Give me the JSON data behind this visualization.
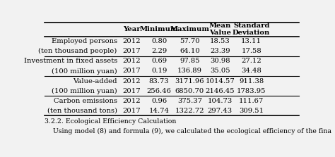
{
  "headers": [
    "",
    "Year",
    "Minimum",
    "Maximum",
    "Mean\nValue",
    "Standard\nDeviation"
  ],
  "rows": [
    [
      "Employed persons",
      "2012",
      "0.80",
      "57.70",
      "18.53",
      "13.11"
    ],
    [
      "(ten thousand people)",
      "2017",
      "2.29",
      "64.10",
      "23.39",
      "17.58"
    ],
    [
      "Investment in fixed assets",
      "2012",
      "0.69",
      "97.85",
      "30.98",
      "27.12"
    ],
    [
      "(100 million yuan)",
      "2017",
      "0.19",
      "136.89",
      "35.05",
      "34.48"
    ],
    [
      "Value-added",
      "2012",
      "83.73",
      "3171.96",
      "1014.57",
      "911.38"
    ],
    [
      "(100 million yuan)",
      "2017",
      "256.46",
      "6850.70",
      "2146.45",
      "1783.95"
    ],
    [
      "Carbon emissions",
      "2012",
      "0.96",
      "375.37",
      "104.73",
      "111.67"
    ],
    [
      "(ten thousand tons)",
      "2017",
      "14.74",
      "1322.72",
      "297.43",
      "309.51"
    ]
  ],
  "footer_text1": "3.2.2. Ecological Efficiency Calculation",
  "footer_text2": "    Using model (8) and formula (9), we calculated the ecological efficiency of the fina",
  "bg_color": "#f2f2f2",
  "font_size": 7.2
}
